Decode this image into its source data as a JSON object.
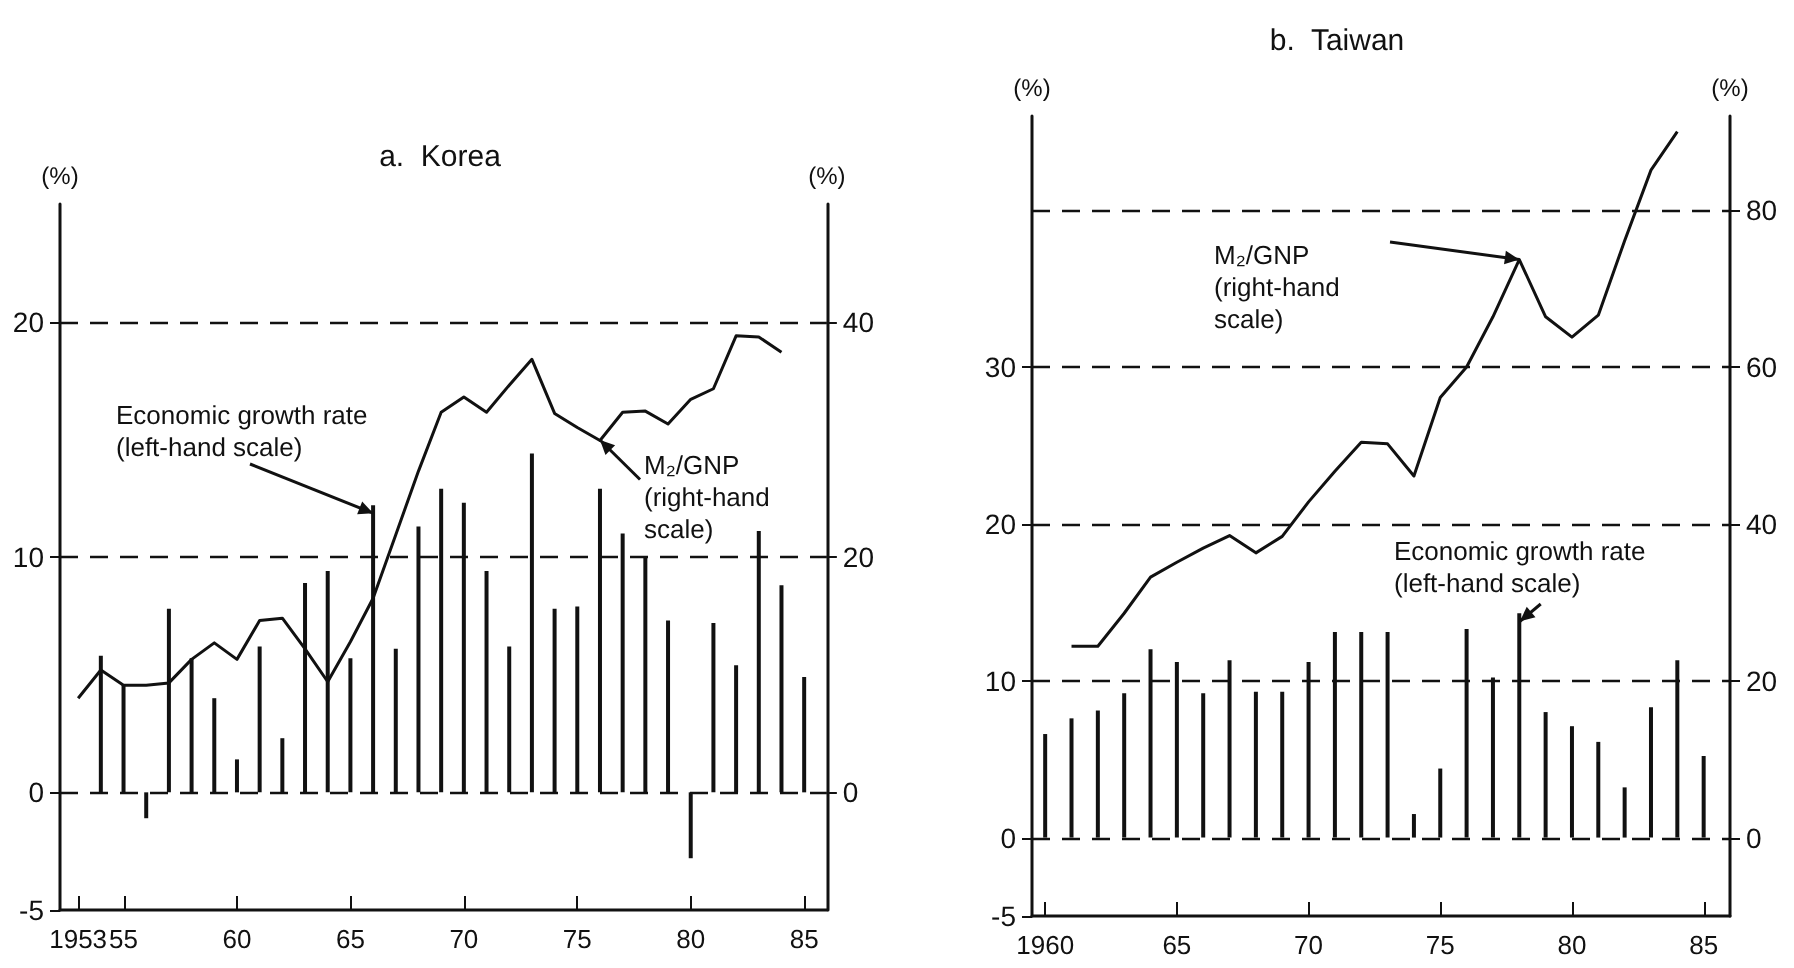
{
  "chart_data": [
    {
      "type": "bar",
      "title": "a.  Korea",
      "ylabel": "(%)",
      "y2label": "(%)",
      "grid": "y",
      "xlim": [
        1952.2,
        1986
      ],
      "xticks": [
        {
          "value": 1953,
          "label": "1953"
        },
        {
          "value": 1955,
          "label": "55"
        },
        {
          "value": 1960,
          "label": "60"
        },
        {
          "value": 1965,
          "label": "65"
        },
        {
          "value": 1970,
          "label": "70"
        },
        {
          "value": 1975,
          "label": "75"
        },
        {
          "value": 1980,
          "label": "80"
        },
        {
          "value": 1985,
          "label": "85"
        }
      ],
      "ylim": [
        -5,
        25
      ],
      "yticks": [
        -5,
        0,
        10,
        20
      ],
      "y2lim": [
        -10,
        50
      ],
      "y2ticks": [
        0,
        20,
        40
      ],
      "series": [
        {
          "name": "Economic growth rate (left-hand scale)",
          "type": "bar",
          "color": "#111111",
          "x": [
            1954,
            1955,
            1956,
            1957,
            1958,
            1959,
            1960,
            1961,
            1962,
            1963,
            1964,
            1965,
            1966,
            1967,
            1968,
            1969,
            1970,
            1971,
            1972,
            1973,
            1974,
            1975,
            1976,
            1977,
            1978,
            1979,
            1980,
            1981,
            1982,
            1983,
            1984,
            1985
          ],
          "values": [
            5.8,
            4.6,
            -1.1,
            7.8,
            5.7,
            4.0,
            1.4,
            6.2,
            2.3,
            8.9,
            9.4,
            5.7,
            12.2,
            6.1,
            11.3,
            12.9,
            12.3,
            9.4,
            6.2,
            14.4,
            7.8,
            7.9,
            12.9,
            11.0,
            10.0,
            7.3,
            -2.8,
            7.2,
            5.4,
            11.1,
            8.8,
            4.9
          ]
        },
        {
          "name": "M₂/GNP (right-hand scale)",
          "type": "line",
          "axis": "y2",
          "color": "#111111",
          "x": [
            1953,
            1954,
            1955,
            1956,
            1957,
            1958,
            1959,
            1960,
            1961,
            1962,
            1963,
            1964,
            1965,
            1966,
            1967,
            1968,
            1969,
            1970,
            1971,
            1972,
            1973,
            1974,
            1975,
            1976,
            1977,
            1978,
            1979,
            1980,
            1981,
            1982,
            1983,
            1984
          ],
          "values": [
            8.0,
            10.4,
            9.1,
            9.1,
            9.3,
            11.3,
            12.7,
            11.3,
            14.6,
            14.8,
            12.2,
            9.4,
            12.8,
            16.5,
            21.9,
            27.3,
            32.3,
            33.6,
            32.3,
            34.6,
            36.8,
            32.2,
            31.0,
            29.9,
            32.3,
            32.4,
            31.3,
            33.4,
            34.3,
            38.8,
            38.7,
            37.4
          ]
        }
      ]
    },
    {
      "type": "bar",
      "title": "b.  Taiwan",
      "ylabel": "(%)",
      "y2label": "(%)",
      "grid": "y",
      "xlim": [
        1959.5,
        1986
      ],
      "xticks": [
        {
          "value": 1960,
          "label": "1960"
        },
        {
          "value": 1965,
          "label": "65"
        },
        {
          "value": 1970,
          "label": "70"
        },
        {
          "value": 1975,
          "label": "75"
        },
        {
          "value": 1980,
          "label": "80"
        },
        {
          "value": 1985,
          "label": "85"
        }
      ],
      "ylim": [
        -5,
        46
      ],
      "yticks": [
        -5,
        0,
        10,
        20,
        30
      ],
      "y2lim": [
        -10,
        92
      ],
      "y2ticks": [
        0,
        20,
        40,
        60,
        80
      ],
      "series": [
        {
          "name": "Economic growth rate (left-hand scale)",
          "type": "bar",
          "color": "#111111",
          "x": [
            1960,
            1961,
            1962,
            1963,
            1964,
            1965,
            1966,
            1967,
            1968,
            1969,
            1970,
            1971,
            1972,
            1973,
            1974,
            1975,
            1976,
            1977,
            1978,
            1979,
            1980,
            1981,
            1982,
            1983,
            1984,
            1985
          ],
          "values": [
            6.6,
            7.6,
            8.1,
            9.2,
            12.0,
            11.2,
            9.2,
            11.3,
            9.3,
            9.3,
            11.2,
            13.1,
            13.1,
            13.1,
            1.5,
            4.4,
            13.3,
            10.2,
            14.3,
            8.0,
            7.1,
            6.1,
            3.2,
            8.3,
            11.3,
            5.2
          ]
        },
        {
          "name": "M₂/GNP (right-hand scale)",
          "type": "line",
          "axis": "y2",
          "color": "#111111",
          "x": [
            1961,
            1962,
            1963,
            1964,
            1965,
            1966,
            1967,
            1968,
            1969,
            1970,
            1971,
            1972,
            1973,
            1974,
            1975,
            1976,
            1977,
            1978,
            1979,
            1980,
            1981,
            1982,
            1983,
            1984
          ],
          "values": [
            24.4,
            24.4,
            28.6,
            33.2,
            35.1,
            36.9,
            38.5,
            36.3,
            38.4,
            42.8,
            46.7,
            50.4,
            50.2,
            46.1,
            56.1,
            60.0,
            66.4,
            73.7,
            66.4,
            63.8,
            66.6,
            76.1,
            85.1,
            90
          ]
        }
      ]
    }
  ]
}
